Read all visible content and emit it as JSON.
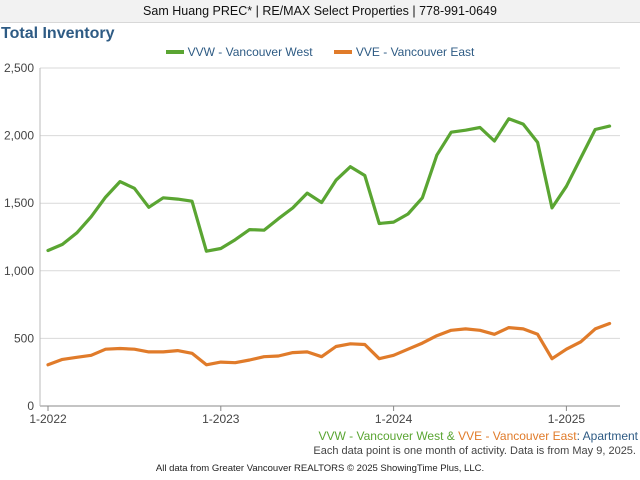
{
  "banner": "Sam Huang PREC* | RE/MAX Select Properties | 778-991-0649",
  "caption": {
    "series_a": "VVW - Vancouver West",
    "amp": " & ",
    "series_b": "VVE - Vancouver East",
    "suffix_sep": ": ",
    "suffix": "Apartment"
  },
  "note": "Each data point is one month of activity. Data is from May 9, 2025.",
  "footer": "All data from Greater Vancouver REALTORS © 2025 ShowingTime Plus, LLC.",
  "colors": {
    "vvw": "#5aa532",
    "vve": "#e07b2a",
    "title": "#2e5b84",
    "grid": "#d9d9d9"
  },
  "chart_data": {
    "type": "line",
    "title": "Total Inventory",
    "grid": true,
    "legend_position": "top-center",
    "ylim": [
      0,
      2500
    ],
    "y_ticks": [
      0,
      500,
      1000,
      1500,
      2000,
      2500
    ],
    "y_tick_labels": [
      "0",
      "500",
      "1,000",
      "1,500",
      "2,000",
      "2,500"
    ],
    "x_tick_labels": [
      "1-2022",
      "1-2023",
      "1-2024",
      "1-2025"
    ],
    "x": [
      "2022-01",
      "2022-02",
      "2022-03",
      "2022-04",
      "2022-05",
      "2022-06",
      "2022-07",
      "2022-08",
      "2022-09",
      "2022-10",
      "2022-11",
      "2022-12",
      "2023-01",
      "2023-02",
      "2023-03",
      "2023-04",
      "2023-05",
      "2023-06",
      "2023-07",
      "2023-08",
      "2023-09",
      "2023-10",
      "2023-11",
      "2023-12",
      "2024-01",
      "2024-02",
      "2024-03",
      "2024-04",
      "2024-05",
      "2024-06",
      "2024-07",
      "2024-08",
      "2024-09",
      "2024-10",
      "2024-11",
      "2024-12",
      "2025-01",
      "2025-02",
      "2025-03",
      "2025-04"
    ],
    "series": [
      {
        "name": "VVW - Vancouver West",
        "values": [
          1150,
          1195,
          1280,
          1400,
          1545,
          1660,
          1610,
          1470,
          1540,
          1530,
          1515,
          1145,
          1165,
          1230,
          1305,
          1300,
          1385,
          1465,
          1575,
          1505,
          1670,
          1770,
          1705,
          1350,
          1360,
          1420,
          1540,
          1855,
          2025,
          2040,
          2060,
          1960,
          2125,
          2085,
          1950,
          1465,
          1625,
          1835,
          2045,
          2070
        ]
      },
      {
        "name": "VVE - Vancouver East",
        "values": [
          305,
          345,
          360,
          375,
          420,
          425,
          420,
          400,
          400,
          410,
          390,
          305,
          325,
          320,
          340,
          365,
          370,
          395,
          400,
          365,
          440,
          460,
          455,
          350,
          375,
          420,
          465,
          520,
          560,
          570,
          560,
          530,
          580,
          570,
          530,
          350,
          420,
          475,
          570,
          610
        ]
      }
    ]
  }
}
